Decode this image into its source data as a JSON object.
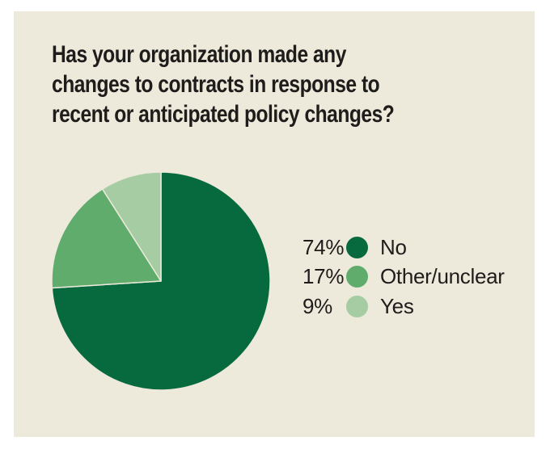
{
  "page": {
    "background_color": "#ffffff",
    "panel_background_color": "#EDE9DB",
    "text_color": "#1E1D1B"
  },
  "title": {
    "full_text": "Has your organization made any changes to contracts in response to recent or anticipated policy changes?",
    "lines": [
      "Has your organization made any",
      "changes to contracts in response to",
      "recent or anticipated policy changes?"
    ]
  },
  "chart_data": {
    "type": "pie",
    "title": "Has your organization made any changes to contracts in response to recent or anticipated policy changes?",
    "start_angle_deg": 0,
    "direction": "clockwise",
    "legend_position": "right",
    "separator_color": "#EDE9DB",
    "categories": [
      "No",
      "Other/unclear",
      "Yes"
    ],
    "values": [
      74,
      17,
      9
    ],
    "slices": [
      {
        "label": "No",
        "value": 74,
        "display": "74%",
        "color": "#076A3E"
      },
      {
        "label": "Other/unclear",
        "value": 17,
        "display": "17%",
        "color": "#5FAC6C"
      },
      {
        "label": "Yes",
        "value": 9,
        "display": "9%",
        "color": "#A5CCA2"
      }
    ]
  }
}
